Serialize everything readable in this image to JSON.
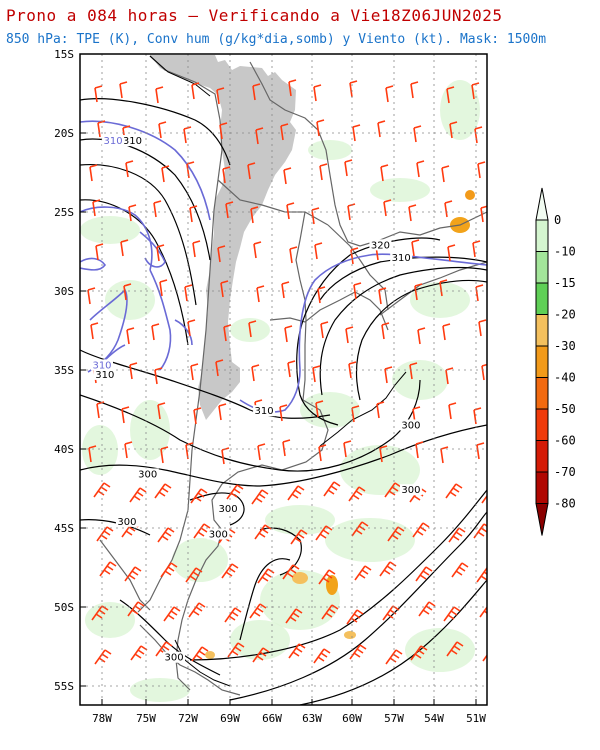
{
  "title": "Prono a 084 horas – Verificando a Vie18Z06JUN2025",
  "subtitle": "850 hPa: TPE (K), Conv hum (g/kg*dia,somb) y Viento (kt). Mask: 1500m",
  "lat_labels": [
    "15S",
    "20S",
    "25S",
    "30S",
    "35S",
    "40S",
    "45S",
    "50S",
    "55S"
  ],
  "lon_labels": [
    "78W",
    "75W",
    "72W",
    "69W",
    "66W",
    "63W",
    "60W",
    "57W",
    "54W",
    "51W"
  ],
  "contour_labels": [
    {
      "text": "310",
      "style": "black",
      "lon": -75.8,
      "lat": -20.7
    },
    {
      "text": "310",
      "style": "blue",
      "lon": -77.2,
      "lat": -20.7
    },
    {
      "text": "320",
      "style": "black",
      "lon": -57.9,
      "lat": -27.3
    },
    {
      "text": "310",
      "style": "black",
      "lon": -56.4,
      "lat": -28.1
    },
    {
      "text": "310",
      "style": "blue",
      "lon": -78.0,
      "lat": -34.9
    },
    {
      "text": "310",
      "style": "black",
      "lon": -77.8,
      "lat": -35.5
    },
    {
      "text": "310",
      "style": "black",
      "lon": -66.3,
      "lat": -37.8
    },
    {
      "text": "300",
      "style": "black",
      "lon": -55.7,
      "lat": -38.7
    },
    {
      "text": "300",
      "style": "black",
      "lon": -74.7,
      "lat": -41.8
    },
    {
      "text": "300",
      "style": "black",
      "lon": -55.7,
      "lat": -42.8
    },
    {
      "text": "300",
      "style": "black",
      "lon": -76.2,
      "lat": -44.8
    },
    {
      "text": "300",
      "style": "black",
      "lon": -68.9,
      "lat": -44.0
    },
    {
      "text": "300",
      "style": "black",
      "lon": -69.6,
      "lat": -45.6
    },
    {
      "text": "300",
      "style": "black",
      "lon": -72.8,
      "lat": -53.4
    }
  ],
  "colorbar": {
    "labels": [
      "0",
      "-10",
      "-15",
      "-20",
      "-30",
      "-40",
      "-50",
      "-60",
      "-70",
      "-80"
    ],
    "colors": [
      "#f2fcf2",
      "#d4f5cf",
      "#a3e59a",
      "#5fcf56",
      "#f4c05e",
      "#f29a1a",
      "#f26a10",
      "#ef3a0a",
      "#d41b06",
      "#b00802",
      "#8a0000"
    ]
  },
  "colors": {
    "title": "#c00000",
    "subtitle": "#1a73c9",
    "contour_black": "#000000",
    "contour_blue": "#6a6ad6",
    "wind_barb": "#ff3b10",
    "mask": "#c8c8c8",
    "border": "#666666"
  }
}
